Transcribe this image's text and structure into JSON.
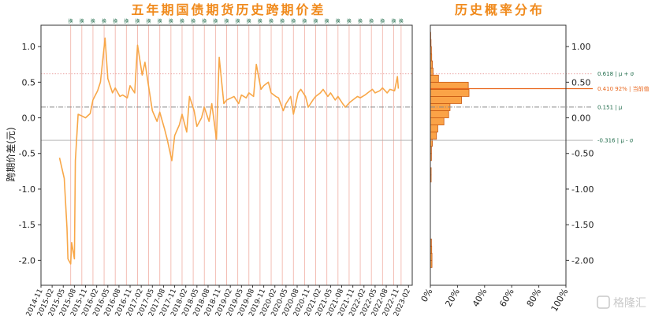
{
  "chart_data": [
    {
      "type": "line",
      "title": "五年期国债期货历史跨期价差",
      "ylabel": "跨期价差(元)",
      "ylim": [
        -2.35,
        1.3
      ],
      "yticks": [
        -2.0,
        -1.5,
        -1.0,
        -0.5,
        0.0,
        0.5,
        1.0
      ],
      "ytick_labels": [
        "-2.0",
        "-1.5",
        "-1.0",
        "-0.5",
        "0.0",
        "0.5",
        "1.0"
      ],
      "xlabels": [
        "2014-11",
        "2015-02",
        "2015-05",
        "2015-08",
        "2015-11",
        "2016-02",
        "2016-05",
        "2016-08",
        "2016-11",
        "2017-02",
        "2017-05",
        "2017-08",
        "2017-11",
        "2018-02",
        "2018-05",
        "2018-08",
        "2018-11",
        "2019-02",
        "2019-05",
        "2019-08",
        "2019-11",
        "2020-02",
        "2020-05",
        "2020-08",
        "2020-11",
        "2021-02",
        "2021-05",
        "2021-08",
        "2021-11",
        "2022-02",
        "2022-05",
        "2022-08",
        "2022-11",
        "2023-02"
      ],
      "roll_marker_label": "换",
      "roll_months": [
        "2015-07",
        "2015-10",
        "2016-01",
        "2016-04",
        "2016-07",
        "2016-10",
        "2017-01",
        "2017-04",
        "2017-07",
        "2017-10",
        "2018-01",
        "2018-04",
        "2018-07",
        "2018-10",
        "2019-01",
        "2019-04",
        "2019-07",
        "2019-10",
        "2020-01",
        "2020-04",
        "2020-07",
        "2020-10",
        "2021-01",
        "2021-04",
        "2021-07",
        "2021-10",
        "2022-01",
        "2022-04",
        "2022-07",
        "2022-10",
        "2022-12"
      ],
      "series": [
        {
          "color": "#f8a748",
          "points": [
            [
              "2015-04",
              -0.56
            ],
            [
              "2015-05",
              -0.85
            ],
            [
              "2015-06",
              -1.55
            ],
            [
              "2015-06",
              -1.98
            ],
            [
              "2015-07",
              -2.05
            ],
            [
              "2015-07",
              -1.75
            ],
            [
              "2015-08",
              -1.98
            ],
            [
              "2015-08",
              -0.6
            ],
            [
              "2015-09",
              0.05
            ],
            [
              "2015-10",
              0.02
            ],
            [
              "2015-11",
              0.0
            ],
            [
              "2015-12",
              0.06
            ],
            [
              "2016-01",
              0.25
            ],
            [
              "2016-02",
              0.38
            ],
            [
              "2016-03",
              0.5
            ],
            [
              "2016-04",
              1.12
            ],
            [
              "2016-05",
              0.55
            ],
            [
              "2016-06",
              0.35
            ],
            [
              "2016-07",
              0.42
            ],
            [
              "2016-08",
              0.3
            ],
            [
              "2016-09",
              0.32
            ],
            [
              "2016-10",
              0.28
            ],
            [
              "2016-11",
              0.45
            ],
            [
              "2016-12",
              0.35
            ],
            [
              "2017-01",
              1.02
            ],
            [
              "2017-02",
              0.6
            ],
            [
              "2017-03",
              0.78
            ],
            [
              "2017-04",
              0.35
            ],
            [
              "2017-05",
              0.1
            ],
            [
              "2017-06",
              -0.05
            ],
            [
              "2017-07",
              0.08
            ],
            [
              "2017-08",
              -0.15
            ],
            [
              "2017-09",
              -0.3
            ],
            [
              "2017-10",
              -0.6
            ],
            [
              "2017-11",
              -0.25
            ],
            [
              "2017-12",
              -0.1
            ],
            [
              "2018-01",
              0.05
            ],
            [
              "2018-02",
              -0.2
            ],
            [
              "2018-03",
              0.3
            ],
            [
              "2018-04",
              0.1
            ],
            [
              "2018-05",
              -0.12
            ],
            [
              "2018-06",
              0.0
            ],
            [
              "2018-07",
              0.15
            ],
            [
              "2018-08",
              -0.05
            ],
            [
              "2018-09",
              0.2
            ],
            [
              "2018-10",
              -0.3
            ],
            [
              "2018-11",
              0.85
            ],
            [
              "2018-12",
              0.2
            ],
            [
              "2019-01",
              0.25
            ],
            [
              "2019-02",
              0.28
            ],
            [
              "2019-03",
              0.3
            ],
            [
              "2019-04",
              0.2
            ],
            [
              "2019-05",
              0.32
            ],
            [
              "2019-06",
              0.28
            ],
            [
              "2019-07",
              0.35
            ],
            [
              "2019-08",
              0.3
            ],
            [
              "2019-09",
              0.75
            ],
            [
              "2019-10",
              0.4
            ],
            [
              "2019-11",
              0.45
            ],
            [
              "2019-12",
              0.5
            ],
            [
              "2020-01",
              0.35
            ],
            [
              "2020-02",
              0.3
            ],
            [
              "2020-03",
              0.28
            ],
            [
              "2020-04",
              0.1
            ],
            [
              "2020-05",
              0.2
            ],
            [
              "2020-06",
              0.3
            ],
            [
              "2020-07",
              0.05
            ],
            [
              "2020-08",
              0.35
            ],
            [
              "2020-09",
              0.4
            ],
            [
              "2020-10",
              0.3
            ],
            [
              "2020-11",
              0.15
            ],
            [
              "2020-12",
              0.25
            ],
            [
              "2021-01",
              0.3
            ],
            [
              "2021-02",
              0.35
            ],
            [
              "2021-03",
              0.4
            ],
            [
              "2021-04",
              0.3
            ],
            [
              "2021-05",
              0.35
            ],
            [
              "2021-06",
              0.25
            ],
            [
              "2021-07",
              0.3
            ],
            [
              "2021-08",
              0.2
            ],
            [
              "2021-09",
              0.15
            ],
            [
              "2021-10",
              0.22
            ],
            [
              "2021-11",
              0.25
            ],
            [
              "2021-12",
              0.3
            ],
            [
              "2022-01",
              0.28
            ],
            [
              "2022-02",
              0.32
            ],
            [
              "2022-03",
              0.35
            ],
            [
              "2022-04",
              0.4
            ],
            [
              "2022-05",
              0.35
            ],
            [
              "2022-06",
              0.38
            ],
            [
              "2022-07",
              0.42
            ],
            [
              "2022-08",
              0.35
            ],
            [
              "2022-09",
              0.4
            ],
            [
              "2022-10",
              0.38
            ],
            [
              "2022-11",
              0.58
            ],
            [
              "2022-11",
              0.41
            ]
          ]
        }
      ],
      "reference_lines": [
        {
          "value": 0.618,
          "style": "dotted",
          "color": "#e89a9a"
        },
        {
          "value": 0.151,
          "style": "dashdot",
          "color": "#888888"
        },
        {
          "value": -0.316,
          "style": "solid",
          "color": "#aaaaaa"
        }
      ],
      "xlim": [
        "2014-11",
        "2023-03"
      ]
    },
    {
      "type": "bar",
      "orientation": "horizontal",
      "title": "历史概率分布",
      "xticks": [
        0,
        20,
        40,
        60,
        80,
        100
      ],
      "xtick_labels": [
        "0%",
        "20%",
        "40%",
        "60%",
        "80%",
        "100%"
      ],
      "xlim": [
        0,
        100
      ],
      "yticks": [
        -2.0,
        -1.5,
        -1.0,
        -0.5,
        0.0,
        0.5,
        1.0
      ],
      "ytick_labels": [
        "-2.00",
        "-1.50",
        "-1.00",
        "-0.50",
        "0.00",
        "0.50",
        "1.00"
      ],
      "bin_width": 0.1,
      "bins": [
        {
          "from": -2.1,
          "to": -2.0,
          "pct": 1.2
        },
        {
          "from": -2.0,
          "to": -1.9,
          "pct": 1.2
        },
        {
          "from": -1.9,
          "to": -1.8,
          "pct": 1.0
        },
        {
          "from": -1.8,
          "to": -1.7,
          "pct": 0.8
        },
        {
          "from": -0.9,
          "to": -0.8,
          "pct": 0.6
        },
        {
          "from": -0.8,
          "to": -0.7,
          "pct": 0.6
        },
        {
          "from": -0.6,
          "to": -0.5,
          "pct": 0.8
        },
        {
          "from": -0.5,
          "to": -0.4,
          "pct": 0.8
        },
        {
          "from": -0.4,
          "to": -0.3,
          "pct": 1.5
        },
        {
          "from": -0.3,
          "to": -0.2,
          "pct": 4.5
        },
        {
          "from": -0.2,
          "to": -0.1,
          "pct": 5.5
        },
        {
          "from": -0.1,
          "to": 0.0,
          "pct": 10.0
        },
        {
          "from": 0.0,
          "to": 0.1,
          "pct": 13.5
        },
        {
          "from": 0.1,
          "to": 0.2,
          "pct": 14.5
        },
        {
          "from": 0.2,
          "to": 0.3,
          "pct": 23.0
        },
        {
          "from": 0.3,
          "to": 0.4,
          "pct": 28.5
        },
        {
          "from": 0.4,
          "to": 0.5,
          "pct": 28.0
        },
        {
          "from": 0.5,
          "to": 0.6,
          "pct": 6.0
        },
        {
          "from": 0.6,
          "to": 0.7,
          "pct": 2.0
        },
        {
          "from": 0.7,
          "to": 0.8,
          "pct": 1.5
        },
        {
          "from": 0.8,
          "to": 0.9,
          "pct": 1.0
        },
        {
          "from": 0.9,
          "to": 1.0,
          "pct": 0.8
        },
        {
          "from": 1.0,
          "to": 1.1,
          "pct": 0.5
        },
        {
          "from": 1.1,
          "to": 1.2,
          "pct": 0.3
        }
      ],
      "annotations": [
        {
          "value": 0.618,
          "label": "0.618 | μ + σ",
          "color": "#1f6b4a"
        },
        {
          "value": 0.41,
          "label": "0.410  92% | 当前值",
          "color": "#e8651b"
        },
        {
          "value": 0.151,
          "label": "0.151 | μ",
          "color": "#1f6b4a"
        },
        {
          "value": -0.316,
          "label": "-0.316 | μ - σ",
          "color": "#1f6b4a"
        }
      ],
      "current_value": 0.41
    }
  ],
  "watermark": {
    "text": "格隆汇"
  }
}
